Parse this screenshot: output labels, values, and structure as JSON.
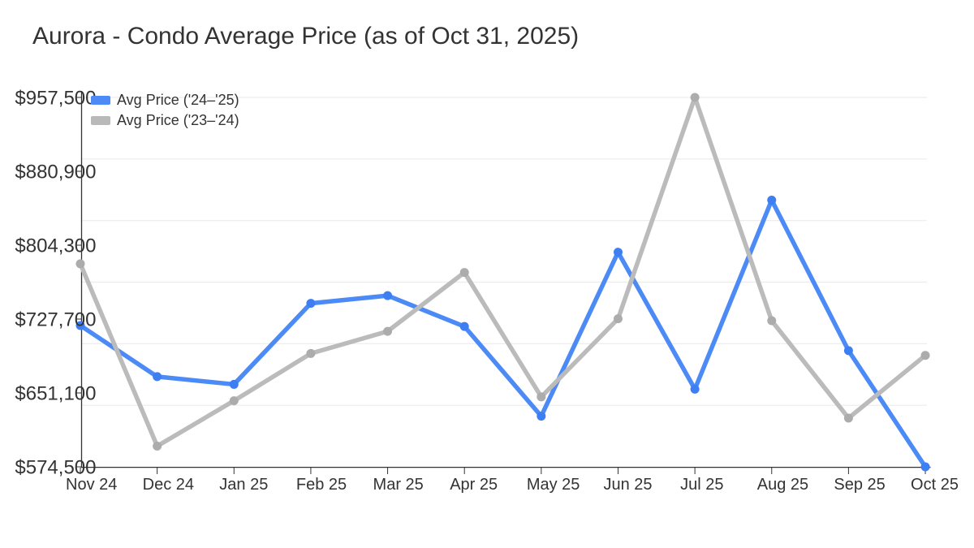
{
  "header": {
    "title": "Aurora - Condo Average Price (as of Oct 31, 2025)"
  },
  "chart_data": {
    "type": "line",
    "title": "Aurora - Condo Average Price (as of Oct 31, 2025)",
    "categories": [
      "Nov 24",
      "Dec 24",
      "Jan 25",
      "Feb 25",
      "Mar 25",
      "Apr 25",
      "May 25",
      "Jun 25",
      "Jul 25",
      "Aug 25",
      "Sep 25",
      "Oct 25"
    ],
    "series": [
      {
        "name": "Avg Price ('24–'25)",
        "color": "#4C8BF5",
        "marker_color": "#3D7FF2",
        "values": [
          721000,
          668000,
          660000,
          744000,
          752000,
          720000,
          627000,
          797000,
          655000,
          851000,
          695000,
          574500
        ]
      },
      {
        "name": "Avg Price ('23–'24)",
        "color": "#BBBBBB",
        "marker_color": "#ACACAC",
        "values": [
          785000,
          596000,
          643000,
          692000,
          715000,
          776000,
          647000,
          728000,
          957500,
          726000,
          625000,
          690000
        ]
      }
    ],
    "ylim": [
      574500,
      957500
    ],
    "yticks": {
      "values": [
        957500,
        880900,
        804300,
        727700,
        651100,
        574500
      ],
      "labels": [
        "$957,500",
        "$880,900",
        "$804,300",
        "$727,700",
        "$651,100",
        "$574,500"
      ]
    },
    "xlabel": "",
    "ylabel": "",
    "grid": {
      "horizontal_divisions": 6,
      "color": "#ECECEC"
    },
    "axis_color": "#333333",
    "text_color": "#333333",
    "legend_position": "top-left"
  }
}
